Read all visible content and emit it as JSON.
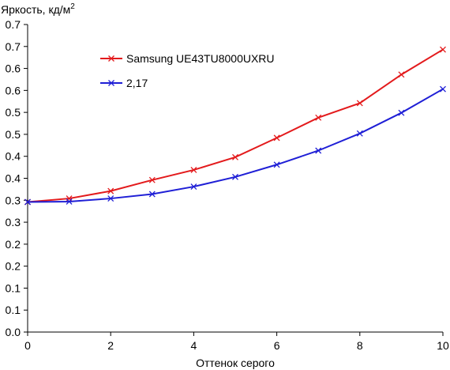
{
  "chart_data": {
    "type": "line",
    "title": "",
    "ylabel": "Яркость, кд/м",
    "ylabel_superscript": "2",
    "xlabel": "Оттенок серого",
    "xlim": [
      0,
      10
    ],
    "ylim": [
      0.0,
      0.7
    ],
    "x_ticks": [
      0,
      2,
      4,
      6,
      8,
      10
    ],
    "x_tick_labels": [
      "0",
      "2",
      "4",
      "6",
      "8",
      "10"
    ],
    "y_ticks": [
      0.0,
      0.05,
      0.1,
      0.15,
      0.2,
      0.25,
      0.3,
      0.35,
      0.4,
      0.45,
      0.5,
      0.55,
      0.6,
      0.65,
      0.7
    ],
    "y_tick_labels": [
      "0.0",
      "0.1",
      "0.1",
      "0.2",
      "0.2",
      "0.3",
      "0.3",
      "0.4",
      "0.4",
      "0.5",
      "0.5",
      "0.6",
      "0.6",
      "0.7",
      "0.7"
    ],
    "grid": false,
    "legend_position": "top-left",
    "x": [
      0,
      1,
      2,
      3,
      4,
      5,
      6,
      7,
      8,
      9,
      10
    ],
    "series": [
      {
        "name": "Samsung UE43TU8000UXRU",
        "color": "#e31a1c",
        "marker": "x",
        "values": [
          0.296,
          0.304,
          0.321,
          0.346,
          0.369,
          0.398,
          0.442,
          0.488,
          0.521,
          0.586,
          0.643
        ]
      },
      {
        "name": "2,17",
        "color": "#1f1fd6",
        "marker": "x",
        "values": [
          0.296,
          0.297,
          0.304,
          0.314,
          0.331,
          0.353,
          0.381,
          0.413,
          0.452,
          0.499,
          0.553
        ]
      }
    ]
  }
}
